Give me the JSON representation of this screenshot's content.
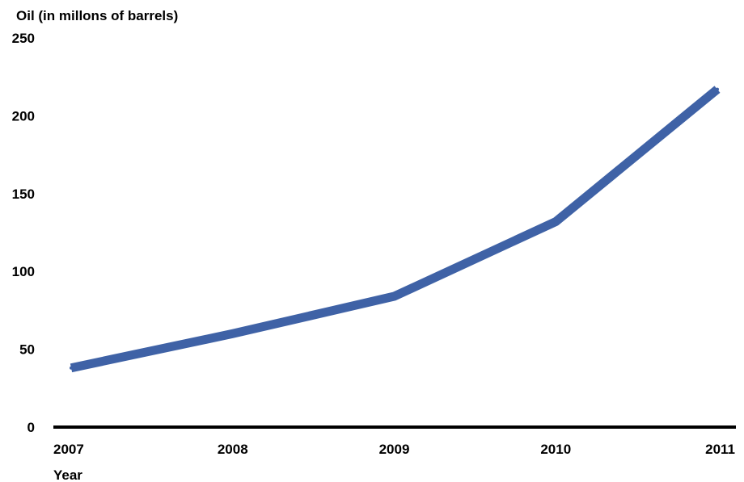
{
  "chart_data": {
    "type": "line",
    "title": "",
    "ylabel": "Oil (in millons of barrels)",
    "xlabel": "Year",
    "categories": [
      "2007",
      "2008",
      "2009",
      "2010",
      "2011"
    ],
    "series": [
      {
        "values": [
          38,
          60,
          84,
          132,
          217
        ]
      }
    ],
    "ylim": [
      0,
      250
    ],
    "yticks": [
      0,
      50,
      100,
      150,
      200,
      250
    ],
    "grid": false,
    "legend": "none",
    "colors": {
      "line": "#3f62a6",
      "axis": "#000000",
      "text": "#000000"
    }
  }
}
